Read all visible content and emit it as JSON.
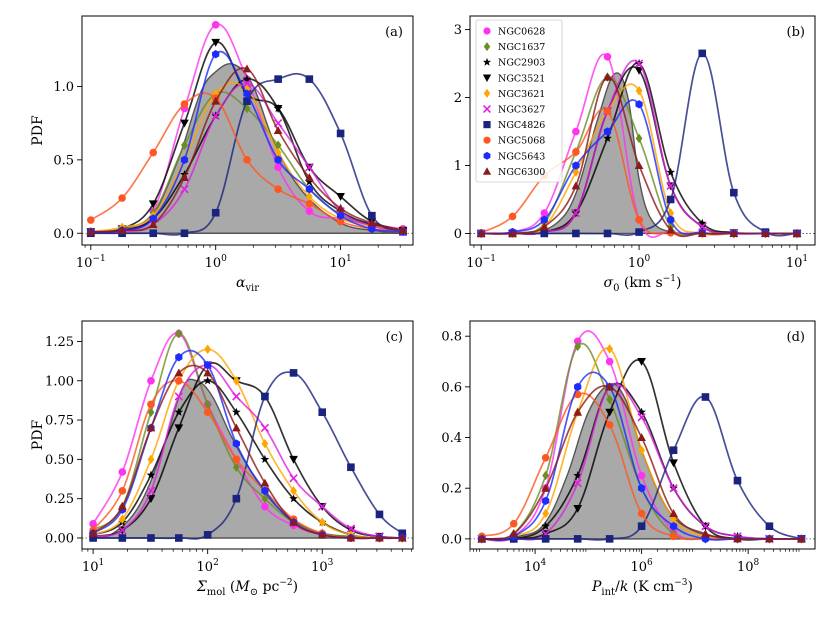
{
  "figure": {
    "title": ""
  },
  "legend": {
    "entries": [
      {
        "name": "NGC0628",
        "color": "#ff33ee",
        "marker": "circle"
      },
      {
        "name": "NGC1637",
        "color": "#6b8e23",
        "marker": "diamond"
      },
      {
        "name": "NGC2903",
        "color": "#000000",
        "marker": "star"
      },
      {
        "name": "NGC3521",
        "color": "#000000",
        "marker": "triangle-down"
      },
      {
        "name": "NGC3621",
        "color": "#ffa500",
        "marker": "diamond"
      },
      {
        "name": "NGC3627",
        "color": "#e020e0",
        "marker": "x"
      },
      {
        "name": "NGC4826",
        "color": "#1a237e",
        "marker": "square"
      },
      {
        "name": "NGC5068",
        "color": "#ff5722",
        "marker": "circle"
      },
      {
        "name": "NGC5643",
        "color": "#1e2bff",
        "marker": "hexagon"
      },
      {
        "name": "NGC6300",
        "color": "#8b1a1a",
        "marker": "triangle-up"
      }
    ]
  },
  "chart_data": [
    {
      "type": "line",
      "panel_label": "(a)",
      "xscale": "log",
      "xlim": [
        0.085,
        38
      ],
      "ylim": [
        -0.08,
        1.48
      ],
      "xticks": [
        {
          "v": 0.1,
          "label": "10",
          "exp": "−1"
        },
        {
          "v": 1,
          "label": "10",
          "exp": "0"
        },
        {
          "v": 10,
          "label": "10",
          "exp": "1"
        }
      ],
      "yticks": [
        {
          "v": 0,
          "label": "0.0"
        },
        {
          "v": 0.5,
          "label": "0.5"
        },
        {
          "v": 1.0,
          "label": "1.0"
        }
      ],
      "xlabel": "α",
      "xlabel_sub": "vir",
      "ylabel": "PDF",
      "x": [
        0.1,
        0.178,
        0.316,
        0.562,
        1.0,
        1.78,
        3.16,
        5.62,
        10.0,
        17.8,
        31.6
      ],
      "gray": [
        [
          0.1,
          0
        ],
        [
          0.178,
          0.02
        ],
        [
          0.3,
          0.1
        ],
        [
          0.5,
          0.5
        ],
        [
          0.75,
          0.95
        ],
        [
          1.0,
          1.1
        ],
        [
          1.4,
          1.15
        ],
        [
          2.0,
          1.0
        ],
        [
          3.0,
          0.6
        ],
        [
          5.0,
          0.28
        ],
        [
          10,
          0.07
        ],
        [
          20,
          0.015
        ],
        [
          31.6,
          0
        ]
      ],
      "series": [
        {
          "name": "NGC0628",
          "values": [
            0.01,
            0.03,
            0.15,
            0.85,
            1.42,
            1.05,
            0.45,
            0.15,
            0.1,
            0.06,
            0.03
          ]
        },
        {
          "name": "NGC1637",
          "values": [
            0.01,
            0.03,
            0.14,
            0.6,
            0.95,
            0.85,
            0.6,
            0.3,
            0.13,
            0.05,
            0.02
          ]
        },
        {
          "name": "NGC2903",
          "values": [
            0.01,
            0.02,
            0.1,
            0.4,
            0.8,
            1.05,
            0.85,
            0.35,
            0.15,
            0.06,
            0.02
          ]
        },
        {
          "name": "NGC3521",
          "values": [
            0.01,
            0.03,
            0.2,
            0.75,
            1.3,
            0.95,
            0.85,
            0.45,
            0.25,
            0.08,
            0.02
          ]
        },
        {
          "name": "NGC3621",
          "values": [
            0.01,
            0.04,
            0.12,
            0.5,
            0.95,
            0.98,
            0.55,
            0.25,
            0.1,
            0.05,
            0.02
          ]
        },
        {
          "name": "NGC3627",
          "values": [
            0.0,
            0.01,
            0.06,
            0.3,
            0.8,
            1.02,
            0.75,
            0.45,
            0.15,
            0.05,
            0.01
          ]
        },
        {
          "name": "NGC4826",
          "values": [
            0.0,
            0.0,
            0.0,
            0.0,
            0.14,
            0.9,
            1.05,
            1.05,
            0.68,
            0.12,
            0.01
          ]
        },
        {
          "name": "NGC5068",
          "values": [
            0.09,
            0.24,
            0.55,
            0.88,
            0.92,
            0.5,
            0.3,
            0.2,
            0.08,
            0.03,
            0.01
          ]
        },
        {
          "name": "NGC5643",
          "values": [
            0.01,
            0.02,
            0.1,
            0.5,
            1.22,
            0.95,
            0.5,
            0.3,
            0.12,
            0.03,
            0.01
          ]
        },
        {
          "name": "NGC6300",
          "values": [
            0.01,
            0.02,
            0.06,
            0.38,
            0.9,
            1.12,
            0.7,
            0.38,
            0.17,
            0.07,
            0.02
          ]
        }
      ]
    },
    {
      "type": "line",
      "panel_label": "(b)",
      "xscale": "log",
      "xlim": [
        0.085,
        13
      ],
      "ylim": [
        -0.17,
        3.2
      ],
      "xticks": [
        {
          "v": 0.1,
          "label": "10",
          "exp": "−1"
        },
        {
          "v": 1,
          "label": "10",
          "exp": "0"
        },
        {
          "v": 10,
          "label": "10",
          "exp": "1"
        }
      ],
      "yticks": [
        {
          "v": 0,
          "label": "0"
        },
        {
          "v": 1,
          "label": "1"
        },
        {
          "v": 2,
          "label": "2"
        },
        {
          "v": 3,
          "label": "3"
        }
      ],
      "xlabel": "σ",
      "xlabel_sub": "0",
      "xlabel_unit": " (km s",
      "xlabel_unit_exp": "−1",
      "xlabel_tail": ")",
      "ylabel": "",
      "x": [
        0.1,
        0.158,
        0.251,
        0.398,
        0.631,
        1.0,
        1.585,
        2.512,
        3.981,
        6.31,
        10.0
      ],
      "gray": [
        [
          0.1,
          0
        ],
        [
          0.2,
          0.02
        ],
        [
          0.3,
          0.15
        ],
        [
          0.4,
          0.6
        ],
        [
          0.55,
          1.7
        ],
        [
          0.7,
          2.35
        ],
        [
          0.85,
          2.0
        ],
        [
          1.0,
          0.8
        ],
        [
          1.2,
          0.2
        ],
        [
          1.6,
          0.02
        ],
        [
          2.5,
          0
        ]
      ],
      "series": [
        {
          "name": "NGC0628",
          "values": [
            0.0,
            0.02,
            0.3,
            1.5,
            2.6,
            0.2,
            0.02,
            0.0,
            0.0,
            0.0,
            0.0
          ]
        },
        {
          "name": "NGC1637",
          "values": [
            0.0,
            0.01,
            0.15,
            1.2,
            2.3,
            1.4,
            0.1,
            0.01,
            0.0,
            0.0,
            0.0
          ]
        },
        {
          "name": "NGC2903",
          "values": [
            0.0,
            0.0,
            0.02,
            0.3,
            1.4,
            2.5,
            0.9,
            0.15,
            0.01,
            0.0,
            0.0
          ]
        },
        {
          "name": "NGC3521",
          "values": [
            0.0,
            0.0,
            0.02,
            0.3,
            1.8,
            2.4,
            0.7,
            0.1,
            0.01,
            0.0,
            0.0
          ]
        },
        {
          "name": "NGC3621",
          "values": [
            0.0,
            0.0,
            0.1,
            0.9,
            1.8,
            2.1,
            0.3,
            0.0,
            0.0,
            0.0,
            0.0
          ]
        },
        {
          "name": "NGC3627",
          "values": [
            0.0,
            0.0,
            0.02,
            0.3,
            1.8,
            2.5,
            0.7,
            0.1,
            0.0,
            0.0,
            0.0
          ]
        },
        {
          "name": "NGC4826",
          "values": [
            0.0,
            0.0,
            0.0,
            0.0,
            0.0,
            0.02,
            0.5,
            2.65,
            0.6,
            0.02,
            0.0
          ]
        },
        {
          "name": "NGC5068",
          "values": [
            0.01,
            0.25,
            0.85,
            1.2,
            1.8,
            0.2,
            0.01,
            0.0,
            0.0,
            0.0,
            0.0
          ]
        },
        {
          "name": "NGC5643",
          "values": [
            0.0,
            0.02,
            0.2,
            1.0,
            1.5,
            1.9,
            0.2,
            0.01,
            0.0,
            0.0,
            0.0
          ]
        },
        {
          "name": "NGC6300",
          "values": [
            0.0,
            0.0,
            0.1,
            0.7,
            2.3,
            1.0,
            0.05,
            0.0,
            0.0,
            0.0,
            0.0
          ]
        }
      ]
    },
    {
      "type": "line",
      "panel_label": "(c)",
      "xscale": "log",
      "xlim": [
        8,
        6200
      ],
      "ylim": [
        -0.07,
        1.38
      ],
      "xticks": [
        {
          "v": 10,
          "label": "10",
          "exp": "1"
        },
        {
          "v": 100,
          "label": "10",
          "exp": "2"
        },
        {
          "v": 1000,
          "label": "10",
          "exp": "3"
        }
      ],
      "yticks": [
        {
          "v": 0,
          "label": "0.00"
        },
        {
          "v": 0.25,
          "label": "0.25"
        },
        {
          "v": 0.5,
          "label": "0.50"
        },
        {
          "v": 0.75,
          "label": "0.75"
        },
        {
          "v": 1.0,
          "label": "1.00"
        },
        {
          "v": 1.25,
          "label": "1.25"
        }
      ],
      "xlabel": "Σ",
      "xlabel_sub": "mol",
      "xlabel_unit": " (M",
      "xlabel_unit_sub": "⊙",
      "xlabel_unit2": " pc",
      "xlabel_unit_exp": "−2",
      "xlabel_tail": ")",
      "ylabel": "PDF",
      "x": [
        10,
        18,
        32,
        56,
        100,
        178,
        316,
        562,
        1000,
        1780,
        3160,
        5000
      ],
      "gray": [
        [
          10,
          0
        ],
        [
          15,
          0.03
        ],
        [
          25,
          0.2
        ],
        [
          40,
          0.55
        ],
        [
          60,
          0.95
        ],
        [
          80,
          1.0
        ],
        [
          110,
          0.9
        ],
        [
          160,
          0.65
        ],
        [
          250,
          0.4
        ],
        [
          400,
          0.2
        ],
        [
          700,
          0.07
        ],
        [
          1200,
          0.02
        ],
        [
          2500,
          0
        ]
      ],
      "series": [
        {
          "name": "NGC0628",
          "values": [
            0.09,
            0.42,
            1.0,
            1.3,
            0.85,
            0.5,
            0.2,
            0.08,
            0.02,
            0.0,
            0.0,
            0.0
          ]
        },
        {
          "name": "NGC1637",
          "values": [
            0.05,
            0.2,
            0.8,
            1.3,
            0.85,
            0.45,
            0.25,
            0.1,
            0.03,
            0.01,
            0.0,
            0.0
          ]
        },
        {
          "name": "NGC2903",
          "values": [
            0.02,
            0.1,
            0.4,
            0.8,
            1.0,
            0.8,
            0.5,
            0.25,
            0.1,
            0.02,
            0.0,
            0.0
          ]
        },
        {
          "name": "NGC3521",
          "values": [
            0.01,
            0.05,
            0.25,
            0.7,
            1.1,
            1.0,
            0.9,
            0.5,
            0.2,
            0.05,
            0.01,
            0.0
          ]
        },
        {
          "name": "NGC3621",
          "values": [
            0.02,
            0.12,
            0.5,
            1.0,
            1.2,
            1.0,
            0.6,
            0.3,
            0.1,
            0.02,
            0.0,
            0.0
          ]
        },
        {
          "name": "NGC3627",
          "values": [
            0.01,
            0.05,
            0.3,
            0.9,
            1.1,
            0.9,
            0.7,
            0.38,
            0.2,
            0.06,
            0.01,
            0.0
          ]
        },
        {
          "name": "NGC4826",
          "values": [
            0.0,
            0.0,
            0.0,
            0.0,
            0.02,
            0.25,
            0.9,
            1.05,
            0.8,
            0.45,
            0.15,
            0.03
          ]
        },
        {
          "name": "NGC5068",
          "values": [
            0.05,
            0.3,
            0.85,
            1.0,
            0.8,
            0.5,
            0.3,
            0.12,
            0.03,
            0.0,
            0.0,
            0.0
          ]
        },
        {
          "name": "NGC5643",
          "values": [
            0.03,
            0.18,
            0.7,
            1.15,
            1.1,
            0.6,
            0.3,
            0.1,
            0.02,
            0.0,
            0.0,
            0.0
          ]
        },
        {
          "name": "NGC6300",
          "values": [
            0.03,
            0.2,
            0.7,
            1.05,
            1.05,
            0.7,
            0.35,
            0.1,
            0.02,
            0.0,
            0.0,
            0.0
          ]
        }
      ]
    },
    {
      "type": "line",
      "panel_label": "(d)",
      "xscale": "log",
      "xlim": [
        600,
        1800000000.0
      ],
      "ylim": [
        -0.04,
        0.86
      ],
      "xticks": [
        {
          "v": 10000,
          "label": "10",
          "exp": "4"
        },
        {
          "v": 1000000,
          "label": "10",
          "exp": "6"
        },
        {
          "v": 100000000,
          "label": "10",
          "exp": "8"
        }
      ],
      "yticks": [
        {
          "v": 0,
          "label": "0.0"
        },
        {
          "v": 0.2,
          "label": "0.2"
        },
        {
          "v": 0.4,
          "label": "0.4"
        },
        {
          "v": 0.6,
          "label": "0.6"
        },
        {
          "v": 0.8,
          "label": "0.8"
        }
      ],
      "xlabel": "P",
      "xlabel_sub": "int",
      "xlabel_unit": "/k (K cm",
      "xlabel_unit_exp": "−3",
      "xlabel_tail": ")",
      "ylabel": "",
      "x": [
        1000,
        3980,
        15800,
        63100,
        251000,
        1000000,
        3980000,
        15800000,
        63100000,
        251000000,
        1000000000
      ],
      "gray": [
        [
          1000,
          0
        ],
        [
          5000,
          0.01
        ],
        [
          15000,
          0.06
        ],
        [
          40000,
          0.25
        ],
        [
          100000,
          0.5
        ],
        [
          250000,
          0.61
        ],
        [
          500000,
          0.55
        ],
        [
          1000000,
          0.35
        ],
        [
          3000000,
          0.12
        ],
        [
          10000000,
          0.03
        ],
        [
          50000000,
          0
        ]
      ],
      "series": [
        {
          "name": "NGC0628",
          "values": [
            0.0,
            0.01,
            0.2,
            0.78,
            0.7,
            0.25,
            0.03,
            0.0,
            0.0,
            0.0,
            0.0
          ]
        },
        {
          "name": "NGC1637",
          "values": [
            0.0,
            0.02,
            0.25,
            0.76,
            0.55,
            0.2,
            0.02,
            0.0,
            0.0,
            0.0,
            0.0
          ]
        },
        {
          "name": "NGC2903",
          "values": [
            0.0,
            0.0,
            0.05,
            0.25,
            0.6,
            0.5,
            0.2,
            0.05,
            0.01,
            0.0,
            0.0
          ]
        },
        {
          "name": "NGC3521",
          "values": [
            0.0,
            0.0,
            0.02,
            0.12,
            0.5,
            0.7,
            0.3,
            0.05,
            0.0,
            0.0,
            0.0
          ]
        },
        {
          "name": "NGC3621",
          "values": [
            0.0,
            0.01,
            0.1,
            0.5,
            0.75,
            0.35,
            0.08,
            0.01,
            0.0,
            0.0,
            0.0
          ]
        },
        {
          "name": "NGC3627",
          "values": [
            0.0,
            0.0,
            0.02,
            0.22,
            0.6,
            0.48,
            0.2,
            0.05,
            0.01,
            0.0,
            0.0
          ]
        },
        {
          "name": "NGC4826",
          "values": [
            0.0,
            0.0,
            0.0,
            0.0,
            0.0,
            0.05,
            0.35,
            0.56,
            0.23,
            0.05,
            0.0
          ]
        },
        {
          "name": "NGC5068",
          "values": [
            0.01,
            0.06,
            0.32,
            0.57,
            0.45,
            0.1,
            0.01,
            0.0,
            0.0,
            0.0,
            0.0
          ]
        },
        {
          "name": "NGC5643",
          "values": [
            0.0,
            0.01,
            0.15,
            0.6,
            0.6,
            0.2,
            0.05,
            0.0,
            0.0,
            0.0,
            0.0
          ]
        },
        {
          "name": "NGC6300",
          "values": [
            0.0,
            0.02,
            0.2,
            0.5,
            0.6,
            0.4,
            0.1,
            0.02,
            0.0,
            0.0,
            0.0
          ]
        }
      ]
    }
  ]
}
